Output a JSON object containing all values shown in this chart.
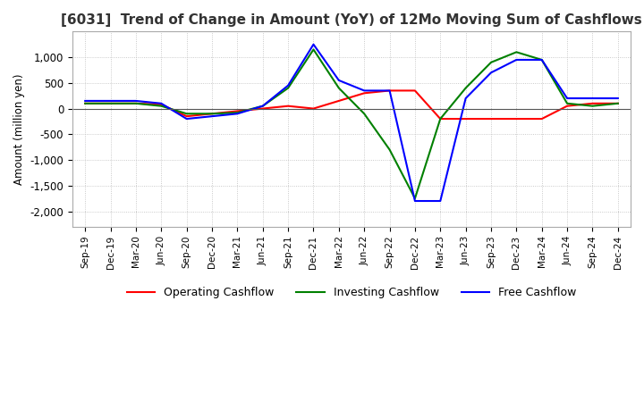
{
  "title": "[6031]  Trend of Change in Amount (YoY) of 12Mo Moving Sum of Cashflows",
  "ylabel": "Amount (million yen)",
  "x_labels": [
    "Sep-19",
    "Dec-19",
    "Mar-20",
    "Jun-20",
    "Sep-20",
    "Dec-20",
    "Mar-21",
    "Jun-21",
    "Sep-21",
    "Dec-21",
    "Mar-22",
    "Jun-22",
    "Sep-22",
    "Dec-22",
    "Mar-23",
    "Jun-23",
    "Sep-23",
    "Dec-23",
    "Mar-24",
    "Jun-24",
    "Sep-24",
    "Dec-24"
  ],
  "operating": [
    100,
    100,
    100,
    80,
    -150,
    -100,
    -50,
    0,
    50,
    0,
    150,
    300,
    350,
    350,
    -200,
    -200,
    -200,
    -200,
    -200,
    50,
    100,
    100
  ],
  "investing": [
    100,
    100,
    100,
    50,
    -100,
    -100,
    -80,
    50,
    400,
    1150,
    400,
    -100,
    -800,
    -1750,
    -200,
    400,
    900,
    1100,
    950,
    100,
    50,
    100
  ],
  "free": [
    150,
    150,
    150,
    100,
    -200,
    -150,
    -100,
    50,
    450,
    1250,
    550,
    350,
    350,
    -1800,
    -1800,
    200,
    700,
    950,
    950,
    200,
    200,
    200
  ],
  "operating_color": "#ff0000",
  "investing_color": "#008000",
  "free_color": "#0000ff",
  "ylim": [
    -2300,
    1500
  ],
  "yticks": [
    -2000,
    -1500,
    -1000,
    -500,
    0,
    500,
    1000
  ],
  "background_color": "#ffffff",
  "grid_color": "#bbbbbb",
  "title_fontsize": 11,
  "legend_labels": [
    "Operating Cashflow",
    "Investing Cashflow",
    "Free Cashflow"
  ]
}
